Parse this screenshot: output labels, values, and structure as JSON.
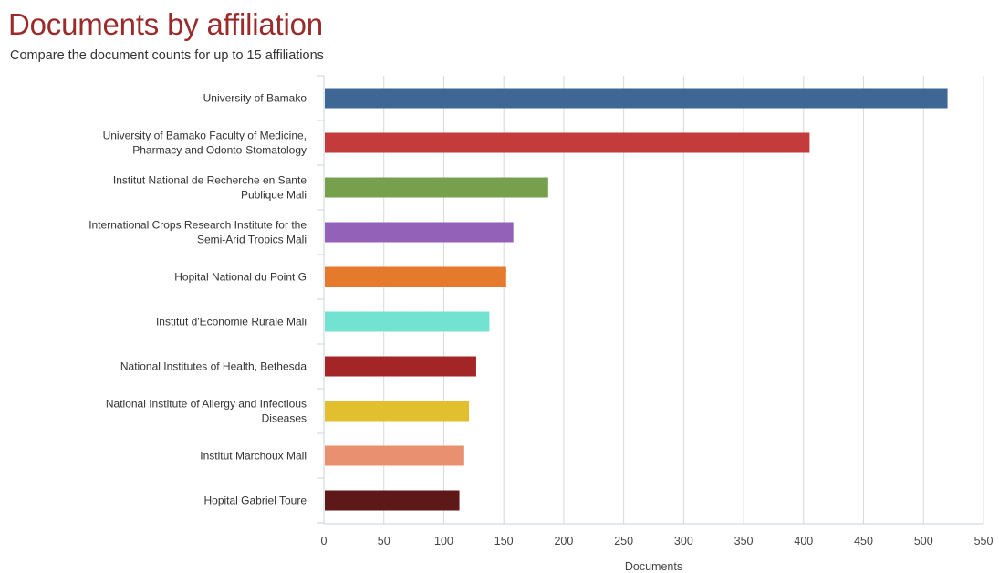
{
  "title": "Documents by affiliation",
  "subtitle": "Compare the document counts for up to 15 affiliations",
  "chart_data": {
    "type": "bar",
    "orientation": "horizontal",
    "categories": [
      "University of Bamako",
      "University of Bamako Faculty of Medicine, Pharmacy and Odonto-Stomatology",
      "Institut National de Recherche en Sante Publique Mali",
      "International Crops Research Institute for the Semi-Arid Tropics Mali",
      "Hopital National du Point G",
      "Institut d'Economie Rurale Mali",
      "National Institutes of Health, Bethesda",
      "National Institute of Allergy and Infectious Diseases",
      "Institut Marchoux Mali",
      "Hopital Gabriel Toure"
    ],
    "category_label_lines": [
      [
        "University of Bamako"
      ],
      [
        "University of Bamako Faculty of Medicine,",
        "Pharmacy and Odonto-Stomatology"
      ],
      [
        "Institut National de Recherche en Sante",
        "Publique Mali"
      ],
      [
        "International Crops Research Institute for the",
        "Semi-Arid Tropics Mali"
      ],
      [
        "Hopital National du Point G"
      ],
      [
        "Institut d'Economie Rurale Mali"
      ],
      [
        "National Institutes of Health, Bethesda"
      ],
      [
        "National Institute of Allergy and Infectious",
        "Diseases"
      ],
      [
        "Institut Marchoux Mali"
      ],
      [
        "Hopital Gabriel Toure"
      ]
    ],
    "values": [
      520,
      405,
      187,
      158,
      152,
      138,
      127,
      121,
      117,
      113
    ],
    "colors": [
      "#3f6796",
      "#c33b3b",
      "#76a04c",
      "#9362b8",
      "#e57a2c",
      "#72e3d1",
      "#a42525",
      "#e2bf2e",
      "#e8906f",
      "#5e1818"
    ],
    "xlabel": "Documents",
    "ylabel": "",
    "xlim": [
      0,
      550
    ],
    "xticks": [
      0,
      50,
      100,
      150,
      200,
      250,
      300,
      350,
      400,
      450,
      500,
      550
    ],
    "grid": true
  }
}
